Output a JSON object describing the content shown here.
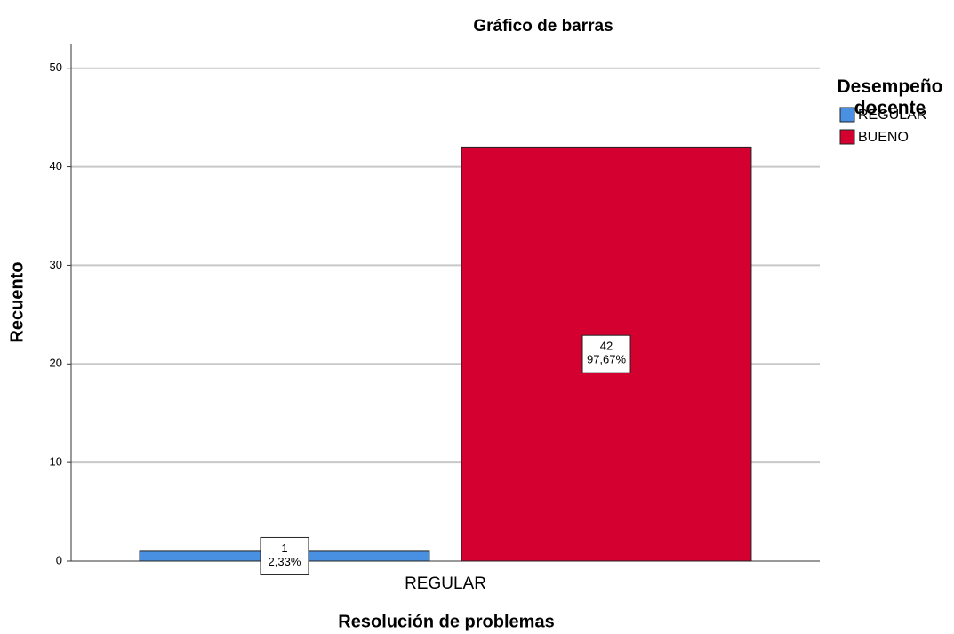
{
  "chart_data": {
    "type": "bar",
    "title": "Gráfico de barras",
    "x_label": "Resolución de problemas",
    "y_label": "Recuento",
    "legend_title": "Desempeño docente",
    "legend_position": "right",
    "categories": [
      "REGULAR"
    ],
    "series": [
      {
        "name": "REGULAR",
        "color": "#4a90e2",
        "values": [
          1
        ],
        "percentages": [
          2.33
        ],
        "percentage_labels": [
          "2,33%"
        ]
      },
      {
        "name": "BUENO",
        "color": "#d40030",
        "values": [
          42
        ],
        "percentages": [
          97.67
        ],
        "percentage_labels": [
          "97,67%"
        ]
      }
    ],
    "ylim": [
      0,
      52.5
    ],
    "yticks": [
      0,
      10,
      20,
      30,
      40,
      50
    ],
    "grid": true
  }
}
